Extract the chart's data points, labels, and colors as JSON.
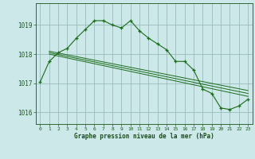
{
  "title": "Graphe pression niveau de la mer (hPa)",
  "background_color": "#cce8e8",
  "grid_color": "#99bbbb",
  "line_color": "#1a6b1a",
  "xlim": [
    -0.5,
    23.5
  ],
  "ylim": [
    1015.6,
    1019.75
  ],
  "yticks": [
    1016,
    1017,
    1018,
    1019
  ],
  "xticks": [
    0,
    1,
    2,
    3,
    4,
    5,
    6,
    7,
    8,
    9,
    10,
    11,
    12,
    13,
    14,
    15,
    16,
    17,
    18,
    19,
    20,
    21,
    22,
    23
  ],
  "series1_x": [
    0,
    1,
    2,
    3,
    4,
    5,
    6,
    7,
    8,
    9,
    10,
    11,
    12,
    13,
    14,
    15,
    16,
    17,
    18,
    19,
    20,
    21,
    22,
    23
  ],
  "series1_y": [
    1017.05,
    1017.75,
    1018.05,
    1018.2,
    1018.55,
    1018.85,
    1019.15,
    1019.15,
    1019.0,
    1018.9,
    1019.15,
    1018.8,
    1018.55,
    1018.35,
    1018.15,
    1017.75,
    1017.75,
    1017.45,
    1016.8,
    1016.65,
    1016.15,
    1016.1,
    1016.22,
    1016.45
  ],
  "series2_x": [
    0,
    1,
    2,
    3,
    4,
    5,
    6,
    7,
    8,
    9,
    10,
    11,
    12,
    13,
    14,
    15,
    16,
    17,
    18,
    19,
    20,
    21,
    22,
    23
  ],
  "series2_y": [
    1017.05,
    1017.75,
    1018.05,
    1018.2,
    1018.55,
    1018.85,
    1019.15,
    1019.15,
    1019.0,
    1018.9,
    1019.15,
    1018.8,
    1018.55,
    1018.35,
    1018.15,
    1017.75,
    1017.75,
    1017.45,
    1016.8,
    1016.65,
    1016.15,
    1016.1,
    1016.22,
    1016.45
  ],
  "trend1_x": [
    1,
    23
  ],
  "trend1_y": [
    1018.0,
    1016.55
  ],
  "trend2_x": [
    1,
    23
  ],
  "trend2_y": [
    1018.05,
    1016.65
  ],
  "trend3_x": [
    1,
    23
  ],
  "trend3_y": [
    1018.1,
    1016.75
  ],
  "spine_color": "#336633",
  "tick_color": "#1a5c1a",
  "title_color": "#1a4a1a"
}
